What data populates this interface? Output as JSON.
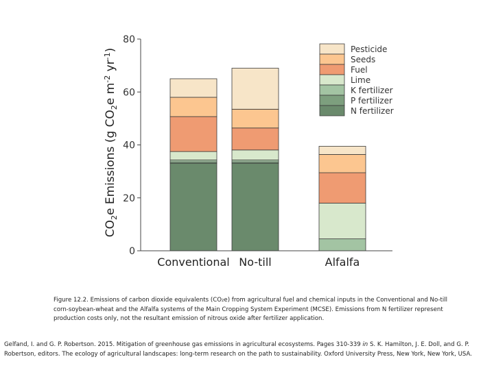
{
  "chart_data": {
    "type": "bar",
    "stacked": true,
    "ylabel_parts": [
      "CO",
      "2",
      "e Emissions (g CO",
      "2",
      "e m",
      "-2",
      " yr",
      "-1",
      ")"
    ],
    "ylim": [
      0,
      80
    ],
    "yticks": [
      0,
      20,
      40,
      60,
      80
    ],
    "categories": [
      "Conventional",
      "No-till",
      "Alfalfa"
    ],
    "legend_position": "top-right",
    "series": [
      {
        "name": "N fertilizer",
        "color": "#6a8a6c",
        "values": [
          33,
          33,
          0
        ]
      },
      {
        "name": "P fertilizer",
        "color": "#7d9f7e",
        "values": [
          0.5,
          0.5,
          0
        ]
      },
      {
        "name": "K fertilizer",
        "color": "#a3c4a3",
        "values": [
          0.8,
          0.8,
          4.5
        ]
      },
      {
        "name": "Lime",
        "color": "#d8e8cc",
        "values": [
          3.2,
          3.8,
          13.5
        ]
      },
      {
        "name": "Fuel",
        "color": "#ef9b72",
        "values": [
          13.2,
          8.3,
          11.5
        ]
      },
      {
        "name": "Seeds",
        "color": "#fcc690",
        "values": [
          7.3,
          7.1,
          6.9
        ]
      },
      {
        "name": "Pesticide",
        "color": "#f7e5c8",
        "values": [
          7,
          15.5,
          3.1
        ]
      }
    ]
  },
  "caption": {
    "text": "Figure 12.2. Emissions of carbon dioxide equivalents (CO₂e) from agricultural fuel and chemical inputs in the Conventional and No-till corn-soybean-wheat and the Alfalfa systems of the Main Cropping System Experiment (MCSE). Emissions from N fertilizer represent production costs only, not the resultant emission of nitrous oxide after fertilizer application."
  },
  "citation": {
    "part1": "Gelfand, I. and G. P. Robertson. 2015. Mitigation of greenhouse gas emissions in agricultural ecosystems. Pages 310-339 ",
    "part2": "in",
    "part3": " S. K. Hamilton, J. E. Doll, and G. P. Robertson, editors. The ecology of agricultural landscapes: long-term research on the path to sustainability. Oxford University Press, New York, New York, USA."
  }
}
